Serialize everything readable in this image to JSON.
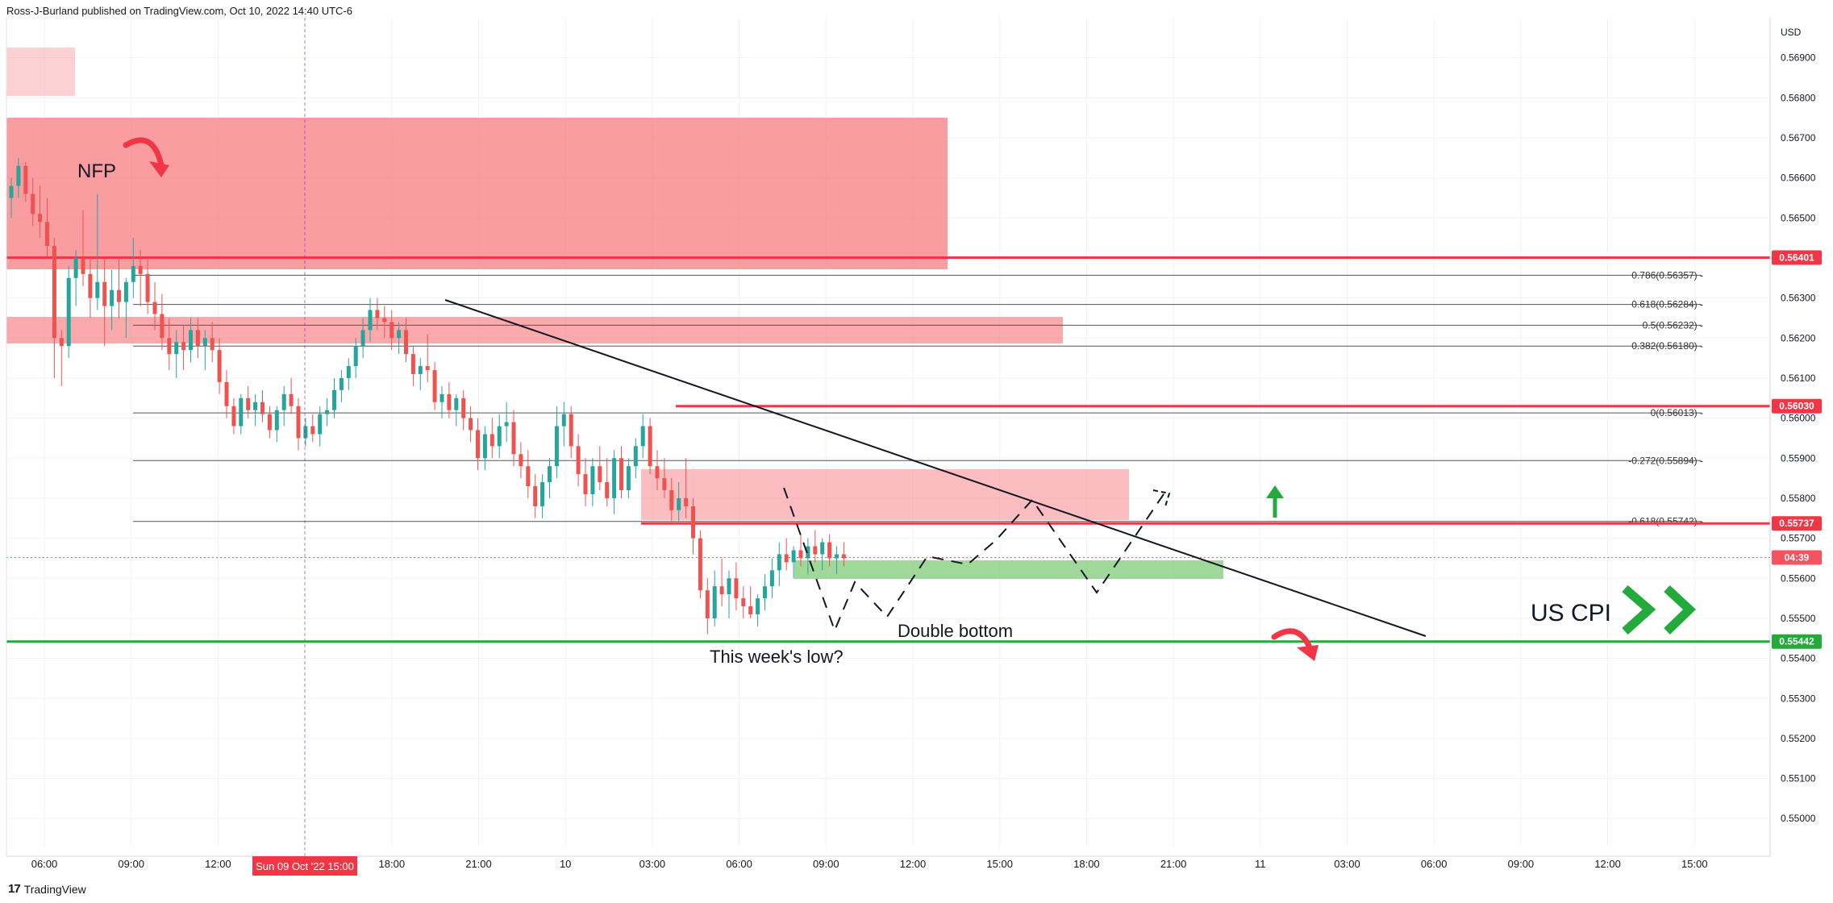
{
  "header": {
    "publisher": "Ross-J-Burland published on TradingView.com, Oct 10, 2022 14:40 UTC-6"
  },
  "footer": {
    "logo_text": "17",
    "brand": "TradingView"
  },
  "colors": {
    "up": "#26a69a",
    "down": "#ef5350",
    "red_line": "#f23645",
    "green_line": "#22ab3a",
    "red_zone": "#f77c80",
    "green_zone": "#78c86e"
  },
  "chart_data": {
    "type": "candlestick",
    "symbol_currency": "USD",
    "y_range": [
      0.5493,
      0.57
    ],
    "x_ticks": [
      "06:00",
      "09:00",
      "12:00",
      "15:00",
      "18:00",
      "21:00",
      "10",
      "03:00",
      "06:00",
      "09:00",
      "12:00",
      "15:00",
      "18:00",
      "21:00",
      "11",
      "03:00",
      "06:00",
      "09:00",
      "12:00",
      "15:00"
    ],
    "crosshair_time_label": "Sun 09 Oct '22  15:00",
    "y_ticks": [
      "0.56900",
      "0.56800",
      "0.56700",
      "0.56600",
      "0.56500",
      "0.56300",
      "0.56200",
      "0.56100",
      "0.56000",
      "0.55900",
      "0.55800",
      "0.55700",
      "0.55600",
      "0.55500",
      "0.55400",
      "0.55300",
      "0.55200",
      "0.55100",
      "0.55000"
    ],
    "price_badges": [
      {
        "label": "0.56401",
        "value": 0.56401,
        "color": "#f23645"
      },
      {
        "label": "0.56030",
        "value": 0.5603,
        "color": "#f23645"
      },
      {
        "label": "0.55737",
        "value": 0.55737,
        "color": "#f23645"
      },
      {
        "label": "04:39",
        "value": 0.55652,
        "color": "#f7525f"
      },
      {
        "label": "0.55442",
        "value": 0.55442,
        "color": "#22ab3a"
      }
    ],
    "fib_levels": [
      {
        "label": "0.786(0.56357)",
        "value": 0.56357
      },
      {
        "label": "0.618(0.56284)",
        "value": 0.56284
      },
      {
        "label": "0.5(0.56232)",
        "value": 0.56232
      },
      {
        "label": "0.382(0.56180)",
        "value": 0.5618
      },
      {
        "label": "0(0.56013)",
        "value": 0.56013
      },
      {
        "label": "-0.272(0.55894)",
        "value": 0.55894
      },
      {
        "label": "-0.618(0.55742)",
        "value": 0.55742
      }
    ],
    "annotations": {
      "nfp": "NFP",
      "us_cpi": "US CPI",
      "double_bottom": "Double bottom",
      "weeks_low": "This week's low?"
    },
    "candles": [
      [
        0.5655,
        0.566,
        0.565,
        0.5658
      ],
      [
        0.5658,
        0.5665,
        0.5655,
        0.5663
      ],
      [
        0.5663,
        0.5664,
        0.5654,
        0.5656
      ],
      [
        0.5656,
        0.566,
        0.5648,
        0.5651
      ],
      [
        0.5651,
        0.5658,
        0.5645,
        0.5649
      ],
      [
        0.5649,
        0.5655,
        0.564,
        0.5643
      ],
      [
        0.5643,
        0.5645,
        0.561,
        0.562
      ],
      [
        0.562,
        0.5622,
        0.5608,
        0.5618
      ],
      [
        0.5618,
        0.5638,
        0.5615,
        0.5635
      ],
      [
        0.5635,
        0.5642,
        0.5628,
        0.564
      ],
      [
        0.564,
        0.5652,
        0.5633,
        0.5636
      ],
      [
        0.5636,
        0.564,
        0.5625,
        0.563
      ],
      [
        0.563,
        0.5656,
        0.5627,
        0.5634
      ],
      [
        0.5634,
        0.564,
        0.5618,
        0.5628
      ],
      [
        0.5628,
        0.5637,
        0.5622,
        0.5632
      ],
      [
        0.5632,
        0.564,
        0.5625,
        0.5629
      ],
      [
        0.5629,
        0.5635,
        0.562,
        0.5634
      ],
      [
        0.5634,
        0.5645,
        0.563,
        0.5638
      ],
      [
        0.5638,
        0.5642,
        0.5628,
        0.5636
      ],
      [
        0.5636,
        0.564,
        0.5626,
        0.5629
      ],
      [
        0.5629,
        0.5634,
        0.5622,
        0.5626
      ],
      [
        0.5626,
        0.5631,
        0.5617,
        0.562
      ],
      [
        0.562,
        0.5625,
        0.5612,
        0.5616
      ],
      [
        0.5616,
        0.5622,
        0.561,
        0.5619
      ],
      [
        0.5619,
        0.5623,
        0.5612,
        0.5617
      ],
      [
        0.5617,
        0.5625,
        0.5614,
        0.5622
      ],
      [
        0.5622,
        0.5625,
        0.5615,
        0.5618
      ],
      [
        0.5618,
        0.5622,
        0.5612,
        0.562
      ],
      [
        0.562,
        0.5624,
        0.5614,
        0.5617
      ],
      [
        0.5617,
        0.562,
        0.5606,
        0.5609
      ],
      [
        0.5609,
        0.5612,
        0.56,
        0.5603
      ],
      [
        0.5603,
        0.5605,
        0.5596,
        0.5598
      ],
      [
        0.5598,
        0.5606,
        0.5596,
        0.5605
      ],
      [
        0.5605,
        0.5608,
        0.56,
        0.5602
      ],
      [
        0.5602,
        0.5606,
        0.5598,
        0.5604
      ],
      [
        0.5604,
        0.5607,
        0.5599,
        0.5601
      ],
      [
        0.5601,
        0.5603,
        0.5595,
        0.5597
      ],
      [
        0.5597,
        0.5603,
        0.5594,
        0.5602
      ],
      [
        0.5602,
        0.5608,
        0.5598,
        0.5606
      ],
      [
        0.5606,
        0.561,
        0.5601,
        0.5603
      ],
      [
        0.5603,
        0.5605,
        0.5592,
        0.5595
      ],
      [
        0.5595,
        0.56,
        0.5593,
        0.5598
      ],
      [
        0.5598,
        0.5601,
        0.5594,
        0.5596
      ],
      [
        0.5596,
        0.5603,
        0.5593,
        0.5601
      ],
      [
        0.5601,
        0.5605,
        0.5598,
        0.5602
      ],
      [
        0.5602,
        0.561,
        0.56,
        0.5607
      ],
      [
        0.5607,
        0.5612,
        0.5604,
        0.561
      ],
      [
        0.561,
        0.5615,
        0.5607,
        0.5613
      ],
      [
        0.5613,
        0.562,
        0.561,
        0.5618
      ],
      [
        0.5618,
        0.5625,
        0.5615,
        0.5622
      ],
      [
        0.5622,
        0.563,
        0.5619,
        0.5627
      ],
      [
        0.5627,
        0.563,
        0.5622,
        0.5625
      ],
      [
        0.5625,
        0.5628,
        0.562,
        0.5624
      ],
      [
        0.5624,
        0.5627,
        0.5617,
        0.562
      ],
      [
        0.562,
        0.5624,
        0.5616,
        0.5622
      ],
      [
        0.5622,
        0.5625,
        0.5614,
        0.5616
      ],
      [
        0.5616,
        0.5618,
        0.5608,
        0.5611
      ],
      [
        0.5611,
        0.5615,
        0.5607,
        0.5613
      ],
      [
        0.5613,
        0.5621,
        0.5609,
        0.5612
      ],
      [
        0.5612,
        0.5614,
        0.5602,
        0.5604
      ],
      [
        0.5604,
        0.5608,
        0.56,
        0.5606
      ],
      [
        0.5606,
        0.5609,
        0.56,
        0.5602
      ],
      [
        0.5602,
        0.5606,
        0.5598,
        0.5605
      ],
      [
        0.5605,
        0.5607,
        0.5597,
        0.56
      ],
      [
        0.56,
        0.5603,
        0.5594,
        0.5597
      ],
      [
        0.5597,
        0.56,
        0.5587,
        0.559
      ],
      [
        0.559,
        0.5598,
        0.5587,
        0.5596
      ],
      [
        0.5596,
        0.56,
        0.559,
        0.5593
      ],
      [
        0.5593,
        0.5601,
        0.559,
        0.5598
      ],
      [
        0.5598,
        0.5604,
        0.5594,
        0.5599
      ],
      [
        0.5599,
        0.5602,
        0.5588,
        0.5591
      ],
      [
        0.5591,
        0.5594,
        0.5585,
        0.5588
      ],
      [
        0.5588,
        0.5592,
        0.558,
        0.5583
      ],
      [
        0.5583,
        0.5586,
        0.5575,
        0.5578
      ],
      [
        0.5578,
        0.5586,
        0.5575,
        0.5584
      ],
      [
        0.5584,
        0.559,
        0.558,
        0.5588
      ],
      [
        0.5588,
        0.5603,
        0.5585,
        0.5598
      ],
      [
        0.5598,
        0.5604,
        0.5593,
        0.5601
      ],
      [
        0.5601,
        0.5603,
        0.559,
        0.5593
      ],
      [
        0.5593,
        0.5596,
        0.5583,
        0.5586
      ],
      [
        0.5586,
        0.559,
        0.5578,
        0.5581
      ],
      [
        0.5581,
        0.559,
        0.5578,
        0.5588
      ],
      [
        0.5588,
        0.5593,
        0.5582,
        0.5584
      ],
      [
        0.5584,
        0.559,
        0.5578,
        0.558
      ],
      [
        0.558,
        0.5592,
        0.5576,
        0.559
      ],
      [
        0.559,
        0.5593,
        0.558,
        0.5582
      ],
      [
        0.5582,
        0.559,
        0.558,
        0.5588
      ],
      [
        0.5588,
        0.5595,
        0.5585,
        0.5593
      ],
      [
        0.5593,
        0.5601,
        0.559,
        0.5598
      ],
      [
        0.5598,
        0.56,
        0.5586,
        0.5588
      ],
      [
        0.5588,
        0.5592,
        0.5582,
        0.5585
      ],
      [
        0.5585,
        0.559,
        0.558,
        0.5582
      ],
      [
        0.5582,
        0.5585,
        0.5574,
        0.5577
      ],
      [
        0.5577,
        0.5584,
        0.5574,
        0.558
      ],
      [
        0.558,
        0.559,
        0.5575,
        0.5578
      ],
      [
        0.5578,
        0.558,
        0.5566,
        0.557
      ],
      [
        0.557,
        0.5572,
        0.5555,
        0.5557
      ],
      [
        0.5557,
        0.556,
        0.5546,
        0.555
      ],
      [
        0.555,
        0.5562,
        0.5548,
        0.5558
      ],
      [
        0.5558,
        0.5565,
        0.5553,
        0.5556
      ],
      [
        0.5556,
        0.5562,
        0.555,
        0.556
      ],
      [
        0.556,
        0.5564,
        0.5552,
        0.5555
      ],
      [
        0.5555,
        0.5558,
        0.555,
        0.5553
      ],
      [
        0.5553,
        0.5558,
        0.555,
        0.5551
      ],
      [
        0.5551,
        0.5556,
        0.5548,
        0.5555
      ],
      [
        0.5555,
        0.5561,
        0.5552,
        0.5558
      ],
      [
        0.5558,
        0.5565,
        0.5555,
        0.5562
      ],
      [
        0.5562,
        0.5569,
        0.5558,
        0.5566
      ],
      [
        0.5566,
        0.557,
        0.5562,
        0.5564
      ],
      [
        0.5564,
        0.5568,
        0.556,
        0.5567
      ],
      [
        0.5567,
        0.5571,
        0.5563,
        0.5565
      ],
      [
        0.5565,
        0.557,
        0.5561,
        0.5568
      ],
      [
        0.5568,
        0.5572,
        0.5564,
        0.5566
      ],
      [
        0.5566,
        0.557,
        0.5562,
        0.5569
      ],
      [
        0.5569,
        0.5571,
        0.5563,
        0.5565
      ],
      [
        0.5565,
        0.5568,
        0.5561,
        0.5566
      ],
      [
        0.5566,
        0.5569,
        0.5563,
        0.5565
      ]
    ]
  }
}
